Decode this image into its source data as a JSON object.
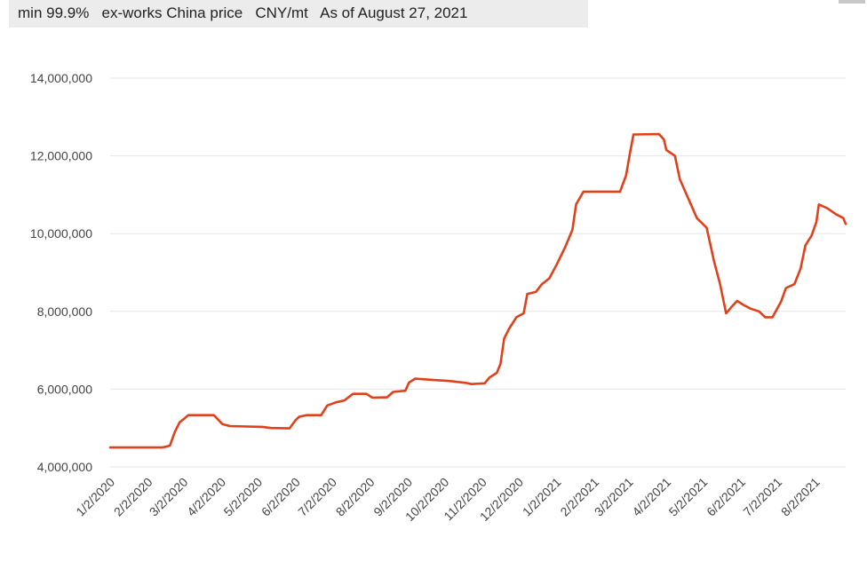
{
  "header": {
    "subtitle": "min 99.9%   ex-works China price   CNY/mt   As of August 27, 2021"
  },
  "chart_data": {
    "type": "line",
    "title": "",
    "subtitle": "min 99.9%   ex-works China price   CNY/mt   As of August 27, 2021",
    "xlabel": "",
    "ylabel": "",
    "ylim": [
      4000000,
      14000000
    ],
    "yticks": [
      4000000,
      6000000,
      8000000,
      10000000,
      12000000,
      14000000
    ],
    "ytick_labels": [
      "4,000,000",
      "6,000,000",
      "8,000,000",
      "10,000,000",
      "12,000,000",
      "14,000,000"
    ],
    "xlim": [
      "2020-01-02",
      "2021-08-27"
    ],
    "xticks": [
      "2020-01-02",
      "2020-02-02",
      "2020-03-02",
      "2020-04-02",
      "2020-05-02",
      "2020-06-02",
      "2020-07-02",
      "2020-08-02",
      "2020-09-02",
      "2020-10-02",
      "2020-11-02",
      "2020-12-02",
      "2021-01-02",
      "2021-02-02",
      "2021-03-02",
      "2021-04-02",
      "2021-05-02",
      "2021-06-02",
      "2021-07-02",
      "2021-08-02"
    ],
    "xtick_labels": [
      "1/2/2020",
      "2/2/2020",
      "3/2/2020",
      "4/2/2020",
      "5/2/2020",
      "6/2/2020",
      "7/2/2020",
      "8/2/2020",
      "9/2/2020",
      "10/2/2020",
      "11/2/2020",
      "12/2/2020",
      "1/2/2021",
      "2/2/2021",
      "3/2/2021",
      "4/2/2021",
      "5/2/2021",
      "6/2/2021",
      "7/2/2021",
      "8/2/2021"
    ],
    "grid": true,
    "legend": "none",
    "color": "#e0411b",
    "series": [
      {
        "points": [
          [
            "2020-01-02",
            4500000
          ],
          [
            "2020-02-13",
            4500000
          ],
          [
            "2020-02-17",
            4520000
          ],
          [
            "2020-02-20",
            4550000
          ],
          [
            "2020-02-24",
            4900000
          ],
          [
            "2020-02-28",
            5150000
          ],
          [
            "2020-03-03",
            5250000
          ],
          [
            "2020-03-06",
            5330000
          ],
          [
            "2020-03-27",
            5330000
          ],
          [
            "2020-03-31",
            5200000
          ],
          [
            "2020-04-03",
            5100000
          ],
          [
            "2020-04-09",
            5050000
          ],
          [
            "2020-05-06",
            5030000
          ],
          [
            "2020-05-13",
            5000000
          ],
          [
            "2020-05-28",
            4990000
          ],
          [
            "2020-06-02",
            5200000
          ],
          [
            "2020-06-05",
            5290000
          ],
          [
            "2020-06-11",
            5330000
          ],
          [
            "2020-06-23",
            5330000
          ],
          [
            "2020-06-28",
            5580000
          ],
          [
            "2020-07-05",
            5660000
          ],
          [
            "2020-07-12",
            5710000
          ],
          [
            "2020-07-19",
            5880000
          ],
          [
            "2020-07-30",
            5880000
          ],
          [
            "2020-08-04",
            5780000
          ],
          [
            "2020-08-16",
            5790000
          ],
          [
            "2020-08-21",
            5930000
          ],
          [
            "2020-08-31",
            5960000
          ],
          [
            "2020-09-03",
            6170000
          ],
          [
            "2020-09-08",
            6270000
          ],
          [
            "2020-09-22",
            6240000
          ],
          [
            "2020-10-06",
            6210000
          ],
          [
            "2020-10-20",
            6160000
          ],
          [
            "2020-10-24",
            6130000
          ],
          [
            "2020-11-04",
            6150000
          ],
          [
            "2020-11-08",
            6300000
          ],
          [
            "2020-11-14",
            6420000
          ],
          [
            "2020-11-17",
            6650000
          ],
          [
            "2020-11-20",
            7300000
          ],
          [
            "2020-11-24",
            7550000
          ],
          [
            "2020-11-30",
            7850000
          ],
          [
            "2020-12-06",
            7950000
          ],
          [
            "2020-12-09",
            8450000
          ],
          [
            "2020-12-16",
            8500000
          ],
          [
            "2020-12-21",
            8700000
          ],
          [
            "2020-12-27",
            8850000
          ],
          [
            "2021-01-02",
            9200000
          ],
          [
            "2021-01-09",
            9650000
          ],
          [
            "2021-01-15",
            10100000
          ],
          [
            "2021-01-18",
            10750000
          ],
          [
            "2021-01-24",
            11080000
          ],
          [
            "2021-02-23",
            11080000
          ],
          [
            "2021-02-28",
            11500000
          ],
          [
            "2021-03-03",
            12050000
          ],
          [
            "2021-03-06",
            12550000
          ],
          [
            "2021-03-27",
            12560000
          ],
          [
            "2021-03-31",
            12420000
          ],
          [
            "2021-04-02",
            12150000
          ],
          [
            "2021-04-09",
            12000000
          ],
          [
            "2021-04-13",
            11400000
          ],
          [
            "2021-04-20",
            10900000
          ],
          [
            "2021-04-27",
            10400000
          ],
          [
            "2021-05-05",
            10150000
          ],
          [
            "2021-05-11",
            9300000
          ],
          [
            "2021-05-16",
            8700000
          ],
          [
            "2021-05-21",
            7950000
          ],
          [
            "2021-05-25",
            8100000
          ],
          [
            "2021-05-30",
            8270000
          ],
          [
            "2021-06-04",
            8170000
          ],
          [
            "2021-06-10",
            8070000
          ],
          [
            "2021-06-17",
            8000000
          ],
          [
            "2021-06-22",
            7850000
          ],
          [
            "2021-06-28",
            7850000
          ],
          [
            "2021-07-05",
            8250000
          ],
          [
            "2021-07-09",
            8600000
          ],
          [
            "2021-07-16",
            8700000
          ],
          [
            "2021-07-21",
            9100000
          ],
          [
            "2021-07-25",
            9700000
          ],
          [
            "2021-07-30",
            9950000
          ],
          [
            "2021-08-03",
            10300000
          ],
          [
            "2021-08-05",
            10750000
          ],
          [
            "2021-08-12",
            10650000
          ],
          [
            "2021-08-19",
            10500000
          ],
          [
            "2021-08-25",
            10400000
          ],
          [
            "2021-08-27",
            10250000
          ]
        ]
      }
    ]
  }
}
